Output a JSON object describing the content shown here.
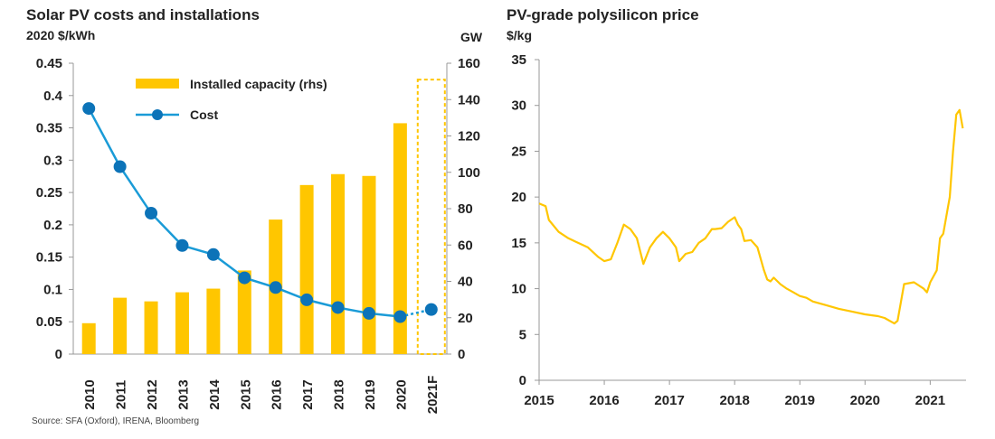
{
  "colors": {
    "bar": "#FFC600",
    "cost_line": "#1A9BD7",
    "cost_marker": "#0C73B8",
    "poly_line": "#FFC600",
    "axis": "#999999"
  },
  "source": "Source: SFA (Oxford), IRENA, Bloomberg",
  "chart_data": [
    {
      "type": "bar+line",
      "title": "Solar PV costs and installations",
      "left_axis_label": "2020 $/kWh",
      "right_axis_label": "GW",
      "categories": [
        "2010",
        "2011",
        "2012",
        "2013",
        "2014",
        "2015",
        "2016",
        "2017",
        "2018",
        "2019",
        "2020",
        "2021F"
      ],
      "left_ticks": [
        "0",
        "0.05",
        "0.1",
        "0.15",
        "0.2",
        "0.25",
        "0.3",
        "0.35",
        "0.4",
        "0.45"
      ],
      "left_range": [
        0,
        0.45
      ],
      "right_ticks": [
        "0",
        "20",
        "40",
        "60",
        "80",
        "100",
        "120",
        "140",
        "160"
      ],
      "right_range": [
        0,
        160
      ],
      "legend": {
        "bars": "Installed capacity (rhs)",
        "line": "Cost"
      },
      "series": [
        {
          "name": "Installed capacity (rhs)",
          "axis": "right",
          "values": [
            17,
            31,
            29,
            34,
            36,
            46,
            74,
            93,
            99,
            98,
            127,
            151
          ],
          "forecast_index": 11
        },
        {
          "name": "Cost",
          "axis": "left",
          "values": [
            0.38,
            0.29,
            0.218,
            0.168,
            0.154,
            0.118,
            0.103,
            0.084,
            0.072,
            0.063,
            0.058,
            0.069
          ],
          "forecast_index": 11
        }
      ]
    },
    {
      "type": "line",
      "title": "PV-grade polysilicon price",
      "ylabel": "$/kg",
      "x_ticks": [
        "2015",
        "2016",
        "2017",
        "2018",
        "2019",
        "2020",
        "2021"
      ],
      "x_range": [
        2015,
        2021.55
      ],
      "y_ticks": [
        "0",
        "5",
        "10",
        "15",
        "20",
        "25",
        "30",
        "35"
      ],
      "y_range": [
        0,
        35
      ],
      "series": [
        {
          "name": "PV-grade polysilicon price",
          "x": [
            2015.0,
            2015.1,
            2015.15,
            2015.3,
            2015.45,
            2015.6,
            2015.75,
            2015.9,
            2016.0,
            2016.1,
            2016.2,
            2016.3,
            2016.4,
            2016.5,
            2016.6,
            2016.7,
            2016.8,
            2016.9,
            2017.0,
            2017.1,
            2017.15,
            2017.25,
            2017.35,
            2017.45,
            2017.55,
            2017.65,
            2017.7,
            2017.8,
            2017.9,
            2018.0,
            2018.05,
            2018.1,
            2018.15,
            2018.25,
            2018.35,
            2018.45,
            2018.5,
            2018.55,
            2018.6,
            2018.7,
            2018.8,
            2018.9,
            2019.0,
            2019.1,
            2019.2,
            2019.4,
            2019.6,
            2019.8,
            2020.0,
            2020.2,
            2020.3,
            2020.45,
            2020.5,
            2020.55,
            2020.6,
            2020.75,
            2020.9,
            2020.95,
            2021.0,
            2021.1,
            2021.15,
            2021.2,
            2021.3,
            2021.35,
            2021.4,
            2021.45,
            2021.5
          ],
          "values": [
            19.3,
            19.0,
            17.5,
            16.2,
            15.5,
            15.0,
            14.5,
            13.5,
            13.0,
            13.2,
            15.0,
            17.0,
            16.5,
            15.5,
            12.7,
            14.5,
            15.5,
            16.2,
            15.5,
            14.5,
            13.0,
            13.8,
            14.0,
            15.0,
            15.5,
            16.5,
            16.5,
            16.6,
            17.3,
            17.8,
            17.0,
            16.5,
            15.2,
            15.3,
            14.5,
            12.0,
            11.0,
            10.8,
            11.2,
            10.5,
            10.0,
            9.6,
            9.2,
            9.0,
            8.6,
            8.2,
            7.8,
            7.5,
            7.2,
            7.0,
            6.8,
            6.2,
            6.5,
            8.5,
            10.5,
            10.7,
            10.0,
            9.6,
            10.7,
            12.0,
            15.5,
            16.0,
            20.0,
            25.0,
            29.0,
            29.5,
            27.5
          ]
        }
      ]
    }
  ]
}
